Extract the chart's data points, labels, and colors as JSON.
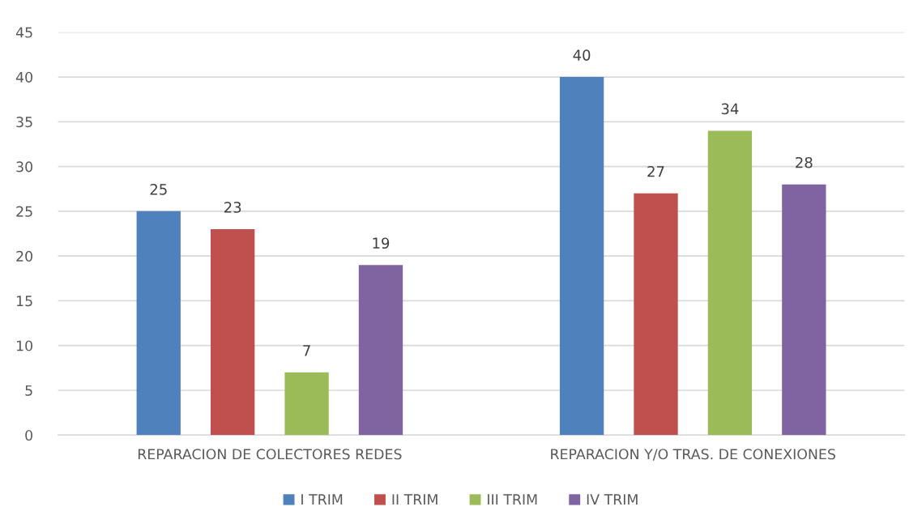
{
  "chart_data": {
    "type": "bar",
    "categories": [
      "REPARACION DE COLECTORES REDES",
      "REPARACION Y/O TRAS. DE CONEXIONES"
    ],
    "series": [
      {
        "name": "I TRIM",
        "color": "#4f81bd",
        "values": [
          25,
          40
        ]
      },
      {
        "name": "II TRIM",
        "color": "#c0504d",
        "values": [
          23,
          27
        ]
      },
      {
        "name": "III TRIM",
        "color": "#9bbb59",
        "values": [
          7,
          34
        ]
      },
      {
        "name": "IV TRIM",
        "color": "#8064a2",
        "values": [
          19,
          28
        ]
      }
    ],
    "ylim": [
      0,
      45
    ],
    "yticks": [
      0,
      5,
      10,
      15,
      20,
      25,
      30,
      35,
      40,
      45
    ],
    "grid": "y",
    "legend": "bottom",
    "data_labels": true
  }
}
